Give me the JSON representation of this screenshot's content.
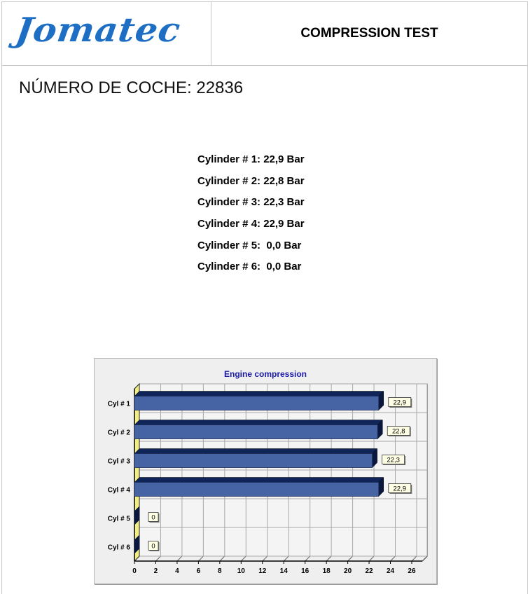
{
  "header": {
    "logo_text": "Jomatec",
    "title": "COMPRESSION TEST"
  },
  "car_number": "NÚMERO DE COCHE: 22836",
  "cylinders": [
    "Cylinder # 1: 22,9 Bar",
    "Cylinder # 2: 22,8 Bar",
    "Cylinder # 3: 22,3 Bar",
    "Cylinder # 4: 22,9 Bar",
    "Cylinder # 5:  0,0 Bar",
    "Cylinder # 6:  0,0 Bar"
  ],
  "colors": {
    "logo": "#1e6fc4",
    "bar": "#4664a4",
    "bar_top": "#0f2458",
    "chart_title": "#1a1aa8",
    "wall": "#f3ee84"
  },
  "chart_data": {
    "type": "bar",
    "orientation": "horizontal",
    "style": "3d",
    "title": "Engine compression",
    "categories": [
      "Cyl # 1",
      "Cyl # 2",
      "Cyl # 3",
      "Cyl # 4",
      "Cyl # 5",
      "Cyl # 6"
    ],
    "values": [
      22.9,
      22.8,
      22.3,
      22.9,
      0,
      0
    ],
    "data_labels": [
      "22,9",
      "22,8",
      "22,3",
      "22,9",
      "0",
      "0"
    ],
    "xticks": [
      0,
      2,
      4,
      6,
      8,
      10,
      12,
      14,
      16,
      18,
      20,
      22,
      24,
      26
    ],
    "xlim": [
      0,
      27
    ],
    "grid": true
  }
}
